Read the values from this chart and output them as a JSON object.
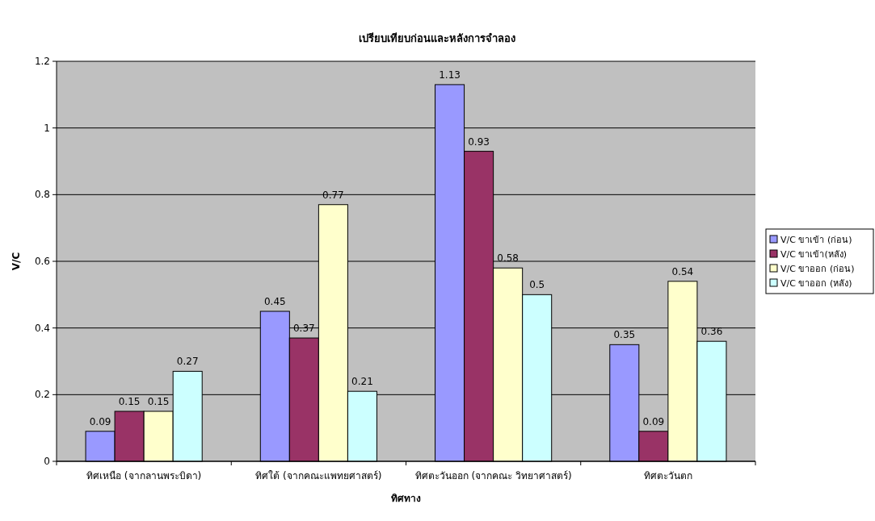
{
  "chart_data": {
    "type": "bar",
    "title": "เปรียบเทียบก่อนและหลังการจำลอง",
    "xlabel": "ทิศทาง",
    "ylabel": "V/C",
    "categories": [
      "ทิศเหนือ (จากลานพระบิดา)",
      "ทิศใต้ (จากคณะแพทยศาสตร์)",
      "ทิศตะวันออก (จากคณะ วิทยาศาสตร์)",
      "ทิศตะวันตก"
    ],
    "series": [
      {
        "name": "V/C ขาเข้า (ก่อน)",
        "color": "#9999ff",
        "values": [
          0.09,
          0.45,
          1.13,
          0.35
        ]
      },
      {
        "name": "V/C ขาเข้า(หลัง)",
        "color": "#993366",
        "values": [
          0.15,
          0.37,
          0.93,
          0.09
        ]
      },
      {
        "name": "V/C ขาออก (ก่อน)",
        "color": "#ffffcc",
        "values": [
          0.15,
          0.77,
          0.58,
          0.54
        ]
      },
      {
        "name": "V/C ขาออก (หลัง)",
        "color": "#ccffff",
        "values": [
          0.27,
          0.21,
          0.5,
          0.36
        ]
      }
    ],
    "ylim": [
      0,
      1.2
    ],
    "yticks": [
      0,
      0.2,
      0.4,
      0.6,
      0.8,
      1,
      1.2
    ],
    "grid": "y",
    "legend": "right",
    "data_labels": true
  }
}
